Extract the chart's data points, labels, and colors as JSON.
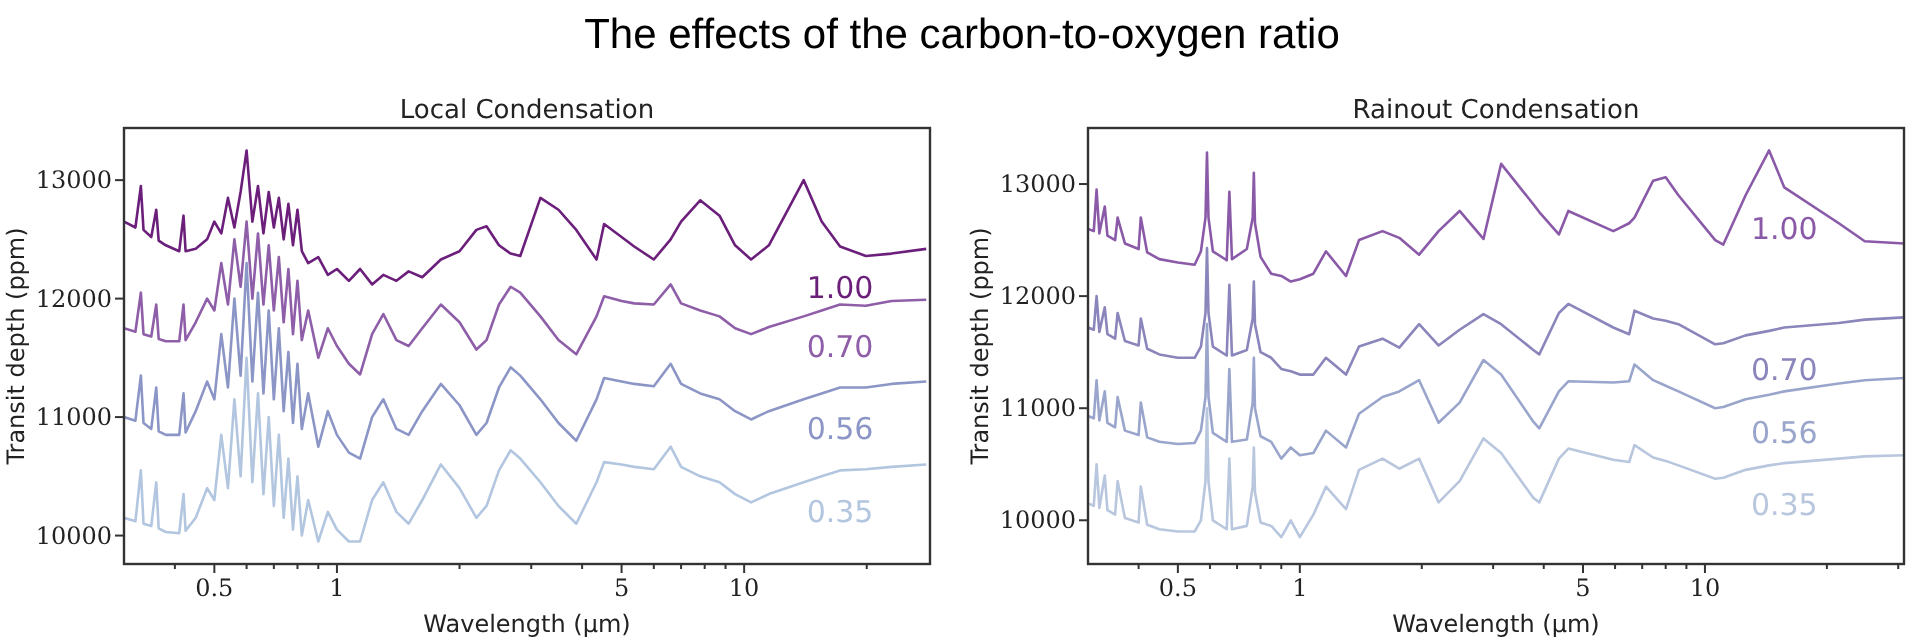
{
  "chart_data": [
    {
      "type": "line",
      "title": "Local Condensation",
      "annotations": [
        "The effects of the carbon-to-oxygen ratio"
      ],
      "xlabel": "Wavelength (μm)",
      "ylabel": "Transit depth (ppm)",
      "log": "x",
      "grid": false,
      "xlim": [
        0.3,
        28.6
      ],
      "ylim": [
        9760,
        13440
      ],
      "xticks": [
        {
          "value": 0.4,
          "label": null
        },
        0.5,
        {
          "value": 0.6,
          "label": null
        },
        {
          "value": 0.7,
          "label": null
        },
        {
          "value": 0.8,
          "label": null
        },
        {
          "value": 0.9,
          "label": null
        },
        1,
        {
          "value": 2,
          "label": null
        },
        {
          "value": 3,
          "label": null
        },
        {
          "value": 4,
          "label": null
        },
        5,
        {
          "value": 6,
          "label": null
        },
        {
          "value": 7,
          "label": null
        },
        {
          "value": 8,
          "label": null
        },
        {
          "value": 9,
          "label": null
        },
        10,
        {
          "value": 20,
          "label": null
        }
      ],
      "yticks": [
        10000,
        11000,
        12000,
        13000
      ],
      "x": [
        0.3,
        0.32,
        0.33,
        0.335,
        0.35,
        0.36,
        0.365,
        0.38,
        0.41,
        0.42,
        0.425,
        0.45,
        0.48,
        0.5,
        0.52,
        0.54,
        0.56,
        0.58,
        0.6,
        0.62,
        0.64,
        0.66,
        0.68,
        0.7,
        0.72,
        0.74,
        0.76,
        0.78,
        0.8,
        0.82,
        0.85,
        0.9,
        0.95,
        1.0,
        1.07,
        1.14,
        1.22,
        1.3,
        1.4,
        1.5,
        1.62,
        1.8,
        2.0,
        2.2,
        2.33,
        2.5,
        2.67,
        2.82,
        3.16,
        3.5,
        3.87,
        4.34,
        4.53,
        5.0,
        5.37,
        6.0,
        6.6,
        7.0,
        7.8,
        8.7,
        9.5,
        10.4,
        11.5,
        14.0,
        15.5,
        17.2,
        19.9,
        23,
        28
      ],
      "series": [
        {
          "name": "1.00",
          "color": "#6b1f7b",
          "values": [
            12650,
            12600,
            12950,
            12580,
            12520,
            12750,
            12490,
            12450,
            12400,
            12700,
            12400,
            12420,
            12500,
            12650,
            12550,
            12850,
            12600,
            12900,
            13250,
            12650,
            12950,
            12550,
            12900,
            12600,
            12850,
            12500,
            12800,
            12450,
            12750,
            12400,
            12300,
            12350,
            12200,
            12250,
            12150,
            12250,
            12120,
            12200,
            12150,
            12230,
            12180,
            12330,
            12400,
            12580,
            12610,
            12450,
            12380,
            12360,
            12850,
            12750,
            12580,
            12330,
            12630,
            12520,
            12440,
            12330,
            12500,
            12650,
            12830,
            12700,
            12450,
            12330,
            12450,
            13000,
            12650,
            12440,
            12360,
            12380,
            12420
          ]
        },
        {
          "name": "0.70",
          "color": "#8e5ea8",
          "values": [
            11750,
            11720,
            12050,
            11700,
            11680,
            11950,
            11660,
            11640,
            11640,
            11950,
            11650,
            11800,
            12000,
            11900,
            12300,
            11950,
            12500,
            12100,
            12650,
            12000,
            12550,
            11950,
            12450,
            11900,
            12350,
            11800,
            12250,
            11700,
            12150,
            11650,
            11900,
            11500,
            11750,
            11600,
            11450,
            11360,
            11700,
            11870,
            11650,
            11600,
            11750,
            11950,
            11800,
            11570,
            11650,
            11950,
            12100,
            12050,
            11850,
            11650,
            11530,
            11850,
            12020,
            11980,
            11960,
            11950,
            12120,
            11960,
            11900,
            11850,
            11750,
            11700,
            11760,
            11850,
            11900,
            11950,
            11940,
            11980,
            11990
          ]
        },
        {
          "name": "0.56",
          "color": "#8c96c6",
          "values": [
            11000,
            10970,
            11350,
            10950,
            10900,
            11250,
            10880,
            10850,
            10850,
            11200,
            10870,
            11050,
            11300,
            11150,
            11700,
            11250,
            12000,
            11350,
            12300,
            11300,
            12050,
            11200,
            11900,
            11150,
            11750,
            11050,
            11550,
            10950,
            11450,
            10900,
            11200,
            10750,
            11050,
            10850,
            10700,
            10650,
            11000,
            11150,
            10900,
            10850,
            11050,
            11280,
            11100,
            10850,
            10950,
            11250,
            11420,
            11350,
            11150,
            10950,
            10800,
            11150,
            11330,
            11300,
            11280,
            11260,
            11450,
            11280,
            11200,
            11150,
            11050,
            10980,
            11050,
            11150,
            11200,
            11250,
            11250,
            11280,
            11300
          ]
        },
        {
          "name": "0.35",
          "color": "#b3c6e0",
          "values": [
            10150,
            10120,
            10550,
            10100,
            10080,
            10450,
            10060,
            10030,
            10020,
            10350,
            10040,
            10150,
            10400,
            10300,
            10850,
            10400,
            11150,
            10500,
            11500,
            10450,
            11200,
            10350,
            11000,
            10250,
            10850,
            10150,
            10650,
            10050,
            10500,
            10000,
            10300,
            9950,
            10200,
            10050,
            9950,
            9950,
            10300,
            10450,
            10200,
            10100,
            10300,
            10600,
            10400,
            10150,
            10250,
            10550,
            10720,
            10650,
            10450,
            10250,
            10100,
            10450,
            10620,
            10600,
            10580,
            10560,
            10750,
            10580,
            10500,
            10450,
            10350,
            10280,
            10350,
            10450,
            10500,
            10550,
            10560,
            10580,
            10600
          ]
        }
      ]
    },
    {
      "type": "line",
      "title": "Rainout Condensation",
      "xlabel": "Wavelength (μm)",
      "ylabel": "Transit depth (ppm)",
      "log": "x",
      "grid": false,
      "xlim": [
        0.3,
        31
      ],
      "ylim": [
        9610,
        13500
      ],
      "xticks": [
        {
          "value": 0.4,
          "label": null
        },
        0.5,
        {
          "value": 0.6,
          "label": null
        },
        {
          "value": 0.7,
          "label": null
        },
        {
          "value": 0.8,
          "label": null
        },
        {
          "value": 0.9,
          "label": null
        },
        1,
        {
          "value": 2,
          "label": null
        },
        {
          "value": 3,
          "label": null
        },
        {
          "value": 4,
          "label": null
        },
        5,
        {
          "value": 6,
          "label": null
        },
        {
          "value": 7,
          "label": null
        },
        {
          "value": 8,
          "label": null
        },
        {
          "value": 9,
          "label": null
        },
        10,
        {
          "value": 20,
          "label": null
        },
        {
          "value": 30,
          "label": null
        }
      ],
      "yticks": [
        10000,
        11000,
        12000,
        13000
      ],
      "x": [
        0.3,
        0.31,
        0.315,
        0.32,
        0.33,
        0.335,
        0.35,
        0.355,
        0.37,
        0.4,
        0.405,
        0.42,
        0.45,
        0.5,
        0.55,
        0.57,
        0.585,
        0.59,
        0.595,
        0.61,
        0.66,
        0.67,
        0.68,
        0.74,
        0.765,
        0.77,
        0.775,
        0.8,
        0.85,
        0.9,
        0.95,
        1.0,
        1.08,
        1.16,
        1.3,
        1.4,
        1.6,
        1.76,
        1.97,
        2.2,
        2.48,
        2.84,
        3.14,
        3.77,
        3.9,
        4.36,
        4.6,
        5.94,
        6.5,
        6.7,
        7.45,
        8.0,
        8.6,
        10.6,
        11.1,
        12.6,
        14.4,
        15.7,
        21.4,
        24.8,
        31
      ],
      "series": [
        {
          "name": "1.00",
          "color": "#8a5aa8",
          "values": [
            12600,
            12580,
            12950,
            12560,
            12800,
            12540,
            12500,
            12700,
            12470,
            12420,
            12700,
            12390,
            12330,
            12300,
            12280,
            12400,
            12700,
            13280,
            12700,
            12400,
            12320,
            12930,
            12330,
            12420,
            12700,
            13100,
            12650,
            12350,
            12200,
            12180,
            12130,
            12150,
            12200,
            12400,
            12180,
            12500,
            12580,
            12520,
            12370,
            12580,
            12760,
            12510,
            13180,
            12820,
            12750,
            12550,
            12760,
            12580,
            12650,
            12700,
            13030,
            13060,
            12900,
            12500,
            12460,
            12900,
            13300,
            12970,
            12650,
            12490,
            12470
          ]
        },
        {
          "name": "0.70",
          "color": "#8a85ba",
          "values": [
            11720,
            11700,
            12000,
            11680,
            11900,
            11660,
            11620,
            11850,
            11600,
            11560,
            11800,
            11530,
            11480,
            11450,
            11450,
            11550,
            11850,
            12430,
            11850,
            11550,
            11470,
            12100,
            11470,
            11520,
            11800,
            12130,
            11750,
            11500,
            11450,
            11350,
            11330,
            11300,
            11300,
            11450,
            11300,
            11550,
            11620,
            11540,
            11750,
            11560,
            11700,
            11840,
            11750,
            11520,
            11480,
            11850,
            11930,
            11720,
            11660,
            11870,
            11800,
            11780,
            11750,
            11570,
            11580,
            11650,
            11690,
            11720,
            11760,
            11790,
            11810
          ]
        },
        {
          "name": "0.56",
          "color": "#9aa5cc",
          "values": [
            10930,
            10910,
            11250,
            10890,
            11150,
            10870,
            10830,
            11100,
            10800,
            10760,
            11050,
            10740,
            10700,
            10680,
            10690,
            10800,
            11100,
            11750,
            11100,
            10780,
            10700,
            11350,
            10700,
            10720,
            11050,
            11450,
            11000,
            10750,
            10700,
            10550,
            10650,
            10580,
            10600,
            10800,
            10650,
            10950,
            11100,
            11150,
            11250,
            10870,
            11050,
            11430,
            11300,
            10880,
            10820,
            11150,
            11240,
            11230,
            11240,
            11390,
            11250,
            11200,
            11150,
            11000,
            11010,
            11080,
            11120,
            11150,
            11220,
            11250,
            11270
          ]
        },
        {
          "name": "0.35",
          "color": "#b8c6de",
          "values": [
            10150,
            10130,
            10500,
            10110,
            10400,
            10090,
            10050,
            10350,
            10020,
            9980,
            10300,
            9960,
            9920,
            9900,
            9900,
            10000,
            10350,
            11000,
            10350,
            10000,
            9920,
            10550,
            9920,
            9950,
            10300,
            10650,
            10250,
            9980,
            9950,
            9850,
            10000,
            9850,
            10050,
            10300,
            10100,
            10450,
            10550,
            10460,
            10550,
            10160,
            10350,
            10730,
            10600,
            10200,
            10160,
            10550,
            10640,
            10540,
            10520,
            10670,
            10560,
            10530,
            10490,
            10370,
            10380,
            10450,
            10490,
            10510,
            10550,
            10570,
            10580
          ]
        }
      ]
    }
  ]
}
